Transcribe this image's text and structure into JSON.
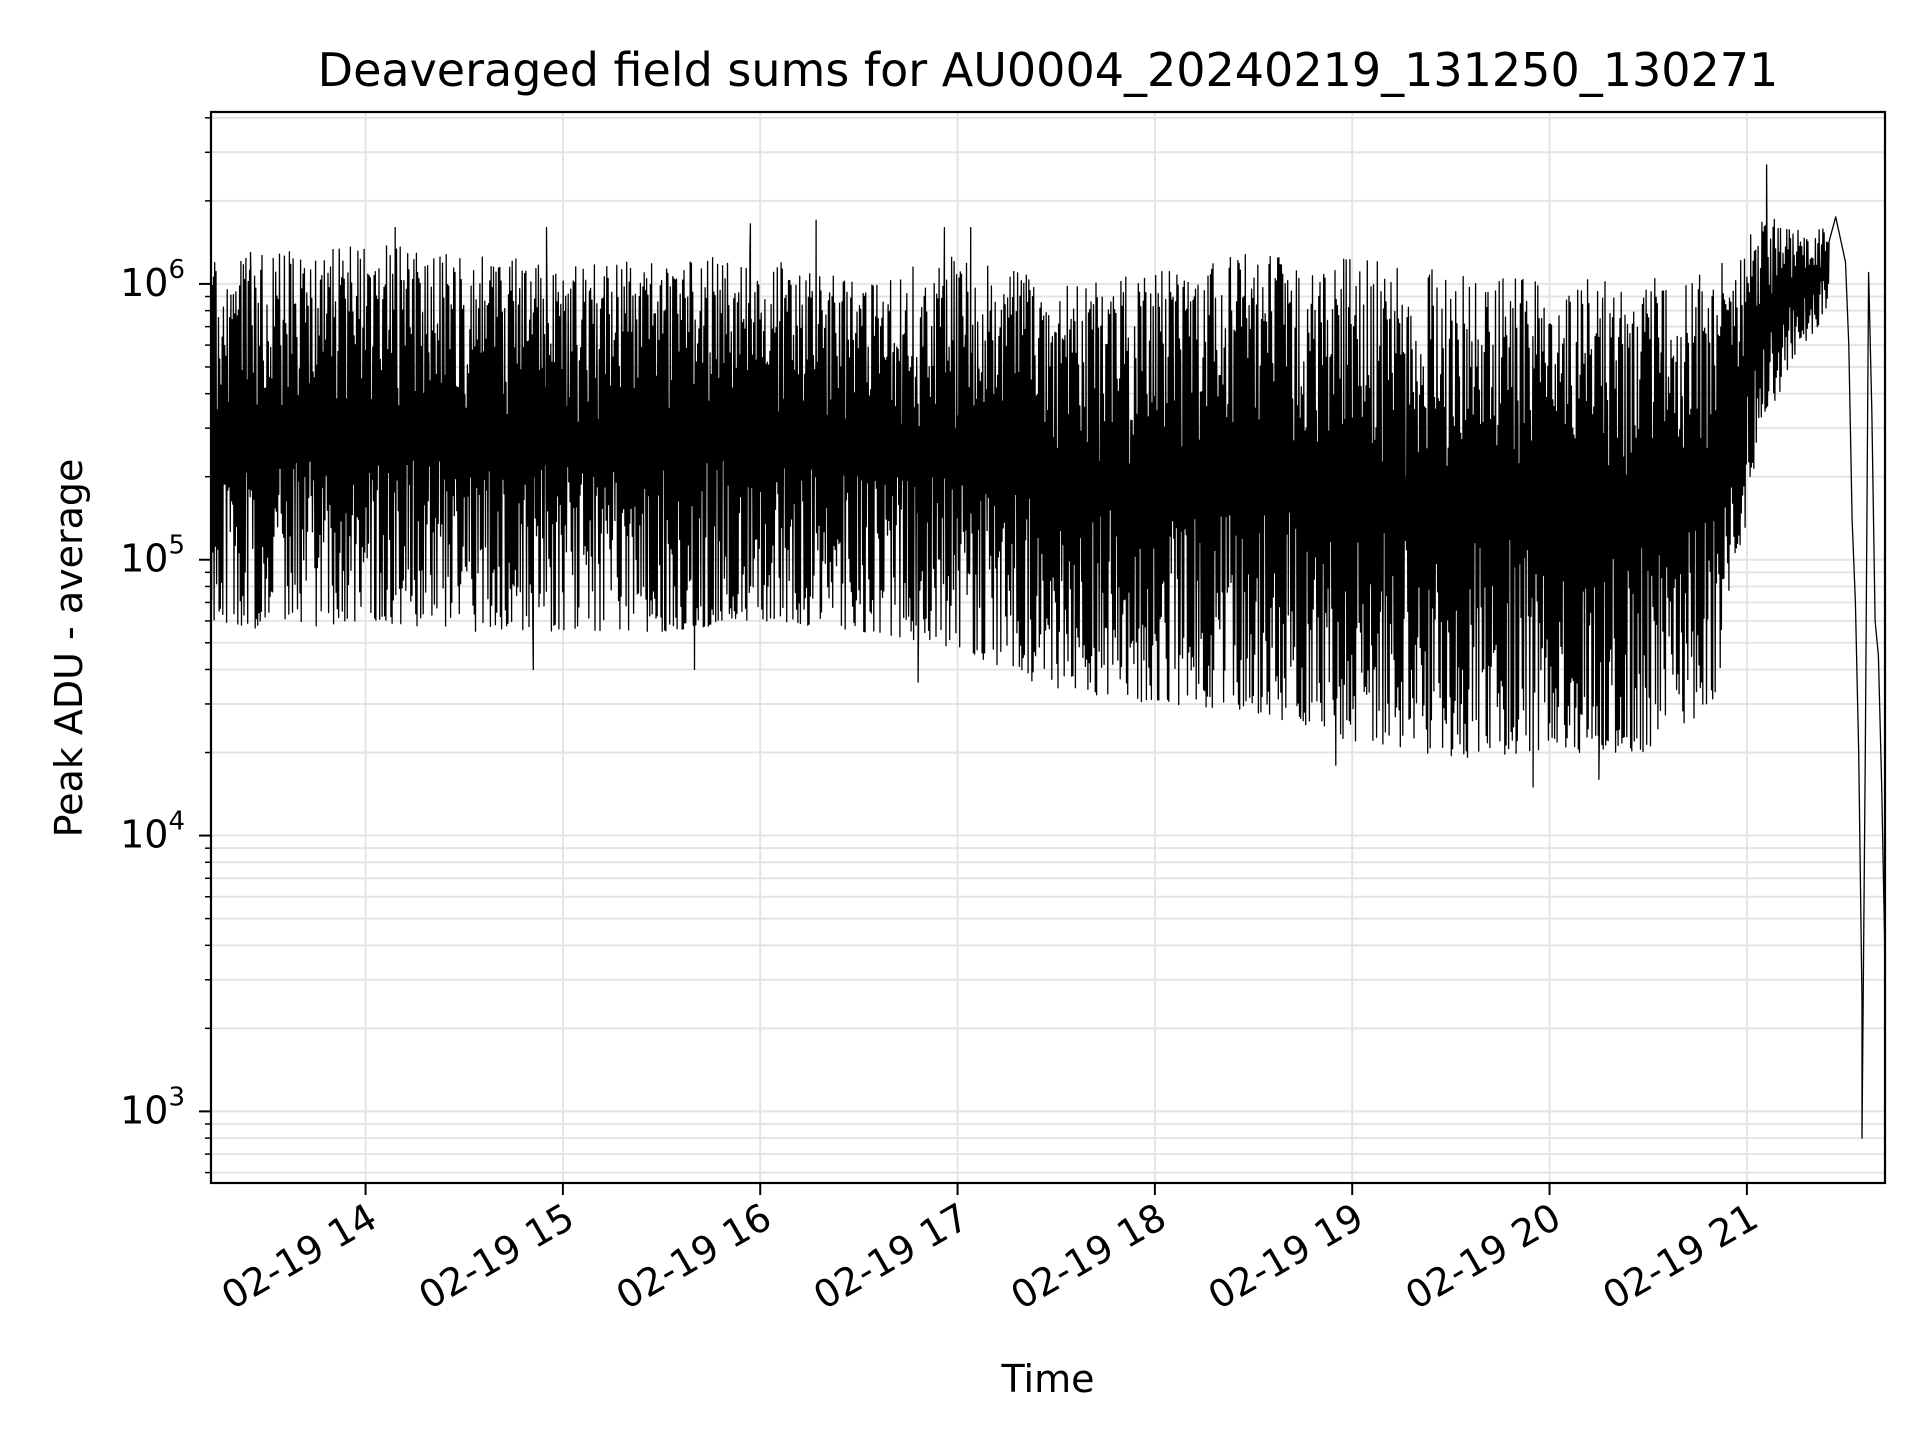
{
  "chart_data": {
    "type": "line",
    "title": "Deaveraged field sums for AU0004_20240219_131250_130271",
    "xlabel": "Time",
    "ylabel": "Peak ADU - average",
    "yscale": "log",
    "ylim": [
      550,
      4200000
    ],
    "xlim": [
      "2024-02-19 13:13",
      "2024-02-19 21:42"
    ],
    "grid": true,
    "line_color": "#000000",
    "x_ticks": [
      {
        "value": "2024-02-19 14:00",
        "label": "02-19 14"
      },
      {
        "value": "2024-02-19 15:00",
        "label": "02-19 15"
      },
      {
        "value": "2024-02-19 16:00",
        "label": "02-19 16"
      },
      {
        "value": "2024-02-19 17:00",
        "label": "02-19 17"
      },
      {
        "value": "2024-02-19 18:00",
        "label": "02-19 18"
      },
      {
        "value": "2024-02-19 19:00",
        "label": "02-19 19"
      },
      {
        "value": "2024-02-19 20:00",
        "label": "02-19 20"
      },
      {
        "value": "2024-02-19 21:00",
        "label": "02-19 21"
      }
    ],
    "y_ticks": [
      {
        "value": 1000,
        "base": "10",
        "exp": "3"
      },
      {
        "value": 10000,
        "base": "10",
        "exp": "4"
      },
      {
        "value": 100000,
        "base": "10",
        "exp": "5"
      },
      {
        "value": 1000000,
        "base": "10",
        "exp": "6"
      }
    ],
    "series": [
      {
        "profile": [
          {
            "x": "2024-02-19 13:13",
            "hi": 1200000,
            "lo": 60000
          },
          {
            "x": "2024-02-19 13:30",
            "hi": 1300000,
            "lo": 55000
          },
          {
            "x": "2024-02-19 14:00",
            "hi": 1400000,
            "lo": 60000
          },
          {
            "x": "2024-02-19 14:30",
            "hi": 1300000,
            "lo": 55000
          },
          {
            "x": "2024-02-19 15:00",
            "hi": 1200000,
            "lo": 55000
          },
          {
            "x": "2024-02-19 15:30",
            "hi": 1200000,
            "lo": 55000
          },
          {
            "x": "2024-02-19 16:00",
            "hi": 1300000,
            "lo": 60000
          },
          {
            "x": "2024-02-19 16:30",
            "hi": 1000000,
            "lo": 55000
          },
          {
            "x": "2024-02-19 17:00",
            "hi": 1300000,
            "lo": 48000
          },
          {
            "x": "2024-02-19 17:30",
            "hi": 1000000,
            "lo": 33000
          },
          {
            "x": "2024-02-19 18:00",
            "hi": 1100000,
            "lo": 30000
          },
          {
            "x": "2024-02-19 18:30",
            "hi": 1300000,
            "lo": 28000
          },
          {
            "x": "2024-02-19 19:00",
            "hi": 1250000,
            "lo": 22000
          },
          {
            "x": "2024-02-19 19:30",
            "hi": 1150000,
            "lo": 19000
          },
          {
            "x": "2024-02-19 20:00",
            "hi": 1050000,
            "lo": 20000
          },
          {
            "x": "2024-02-19 20:30",
            "hi": 1050000,
            "lo": 20000
          },
          {
            "x": "2024-02-19 20:50",
            "hi": 1100000,
            "lo": 30000
          },
          {
            "x": "2024-02-19 21:05",
            "hi": 1800000,
            "lo": 300000
          },
          {
            "x": "2024-02-19 21:15",
            "hi": 1600000,
            "lo": 550000
          },
          {
            "x": "2024-02-19 21:25",
            "hi": 1600000,
            "lo": 800000
          }
        ],
        "spikes": [
          {
            "x": "2024-02-19 13:25",
            "y": 1300000
          },
          {
            "x": "2024-02-19 13:52",
            "y": 1300000
          },
          {
            "x": "2024-02-19 14:09",
            "y": 1600000
          },
          {
            "x": "2024-02-19 14:55",
            "y": 1600000
          },
          {
            "x": "2024-02-19 15:57",
            "y": 1650000
          },
          {
            "x": "2024-02-19 16:17",
            "y": 1700000
          },
          {
            "x": "2024-02-19 16:56",
            "y": 1600000
          },
          {
            "x": "2024-02-19 17:04",
            "y": 1600000
          },
          {
            "x": "2024-02-19 21:06",
            "y": 2700000
          },
          {
            "x": "2024-02-19 19:55",
            "y": 15000
          },
          {
            "x": "2024-02-19 18:55",
            "y": 18000
          },
          {
            "x": "2024-02-19 20:15",
            "y": 16000
          },
          {
            "x": "2024-02-19 16:48",
            "y": 36000
          },
          {
            "x": "2024-02-19 14:51",
            "y": 40000
          },
          {
            "x": "2024-02-19 15:40",
            "y": 40000
          }
        ],
        "tail": [
          {
            "x": "2024-02-19 21:27",
            "y": 1750000
          },
          {
            "x": "2024-02-19 21:30",
            "y": 1200000
          },
          {
            "x": "2024-02-19 21:31",
            "y": 600000
          },
          {
            "x": "2024-02-19 21:32",
            "y": 140000
          },
          {
            "x": "2024-02-19 21:33",
            "y": 70000
          },
          {
            "x": "2024-02-19 21:34",
            "y": 20000
          },
          {
            "x": "2024-02-19 21:35",
            "y": 2500
          },
          {
            "x": "2024-02-19 21:35",
            "y": 800
          },
          {
            "x": "2024-02-19 21:36",
            "y": 20000
          },
          {
            "x": "2024-02-19 21:37",
            "y": 1100000
          },
          {
            "x": "2024-02-19 21:38",
            "y": 350000
          },
          {
            "x": "2024-02-19 21:39",
            "y": 60000
          },
          {
            "x": "2024-02-19 21:40",
            "y": 45000
          },
          {
            "x": "2024-02-19 21:41",
            "y": 15000
          },
          {
            "x": "2024-02-19 21:42",
            "y": 3500
          }
        ]
      }
    ]
  }
}
